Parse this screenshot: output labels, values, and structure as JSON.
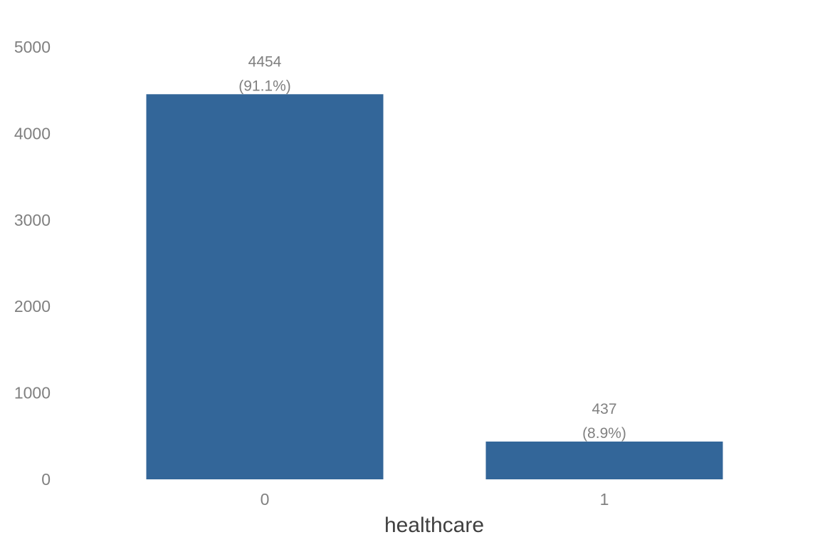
{
  "chart_data": {
    "type": "bar",
    "title": "",
    "xlabel": "healthcare",
    "ylabel": "",
    "categories": [
      "0",
      "1"
    ],
    "values": [
      4454,
      437
    ],
    "data_labels": [
      {
        "count": "4454",
        "percent": "(91.1%)"
      },
      {
        "count": "437",
        "percent": "(8.9%)"
      }
    ],
    "ylim": [
      0,
      5000
    ],
    "yticks": [
      "0",
      "1000",
      "2000",
      "3000",
      "4000",
      "5000"
    ],
    "grid": false,
    "legend": "none",
    "colors": {
      "bar": "#336699",
      "tick_text": "#808080",
      "label_text": "#808080",
      "axis_title": "#404040"
    }
  }
}
